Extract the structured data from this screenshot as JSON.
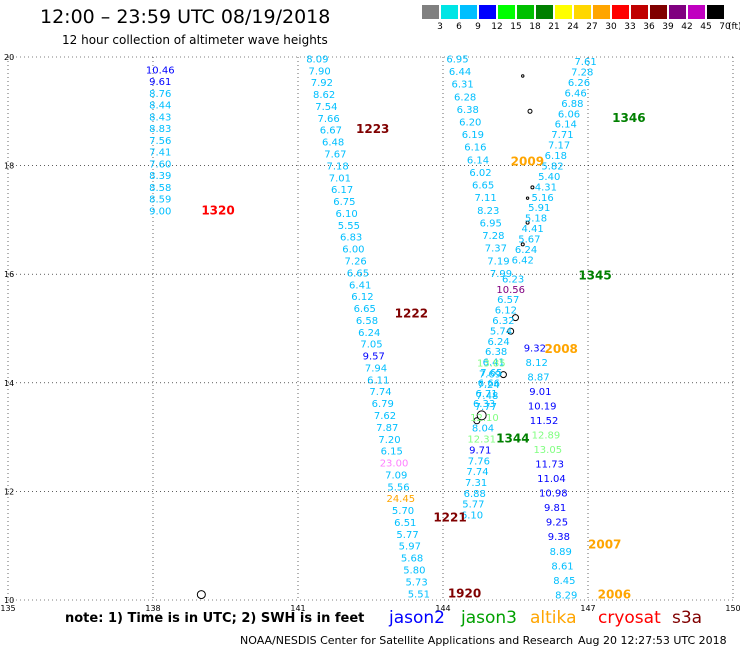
{
  "header": {
    "title": "12:00 – 23:59 UTC 08/19/2018",
    "subtitle": "12 hour collection of altimeter wave heights"
  },
  "color_scale": {
    "unit": "(ft)",
    "bins": [
      {
        "label": "3",
        "color": "#808080"
      },
      {
        "label": "6",
        "color": "#00e5e5"
      },
      {
        "label": "9",
        "color": "#00bfff"
      },
      {
        "label": "12",
        "color": "#0000ff"
      },
      {
        "label": "15",
        "color": "#00ff00"
      },
      {
        "label": "18",
        "color": "#00c000"
      },
      {
        "label": "21",
        "color": "#008000"
      },
      {
        "label": "24",
        "color": "#ffff00"
      },
      {
        "label": "27",
        "color": "#ffd700"
      },
      {
        "label": "30",
        "color": "#ffa500"
      },
      {
        "label": "33",
        "color": "#ff0000"
      },
      {
        "label": "36",
        "color": "#c00000"
      },
      {
        "label": "39",
        "color": "#800000"
      },
      {
        "label": "42",
        "color": "#800080"
      },
      {
        "label": "45",
        "color": "#c000c0"
      },
      {
        "label": "70",
        "color": "#000000"
      }
    ]
  },
  "map": {
    "lon_ticks": [
      "135",
      "138",
      "141",
      "144",
      "147",
      "150"
    ],
    "lat_ticks": [
      "10",
      "12",
      "14",
      "16",
      "18",
      "20"
    ],
    "lon_range": [
      135,
      150
    ],
    "lat_range": [
      10,
      20
    ],
    "pass_labels": [
      {
        "text": "1320",
        "lon": 139.0,
        "lat": 17.1,
        "color": "#ff0000"
      },
      {
        "text": "1223",
        "lon": 142.2,
        "lat": 18.6,
        "color": "#800000"
      },
      {
        "text": "1222",
        "lon": 143.0,
        "lat": 15.2,
        "color": "#800000"
      },
      {
        "text": "1346",
        "lon": 147.5,
        "lat": 18.8,
        "color": "#008000"
      },
      {
        "text": "2009",
        "lon": 145.4,
        "lat": 18.0,
        "color": "#ffa500"
      },
      {
        "text": "1345",
        "lon": 146.8,
        "lat": 15.9,
        "color": "#008000"
      },
      {
        "text": "2008",
        "lon": 146.1,
        "lat": 14.55,
        "color": "#ffa500"
      },
      {
        "text": "1344",
        "lon": 145.1,
        "lat": 12.9,
        "color": "#008000"
      },
      {
        "text": "1221",
        "lon": 143.8,
        "lat": 11.45,
        "color": "#800000"
      },
      {
        "text": "2007",
        "lon": 147.0,
        "lat": 10.95,
        "color": "#ffa500"
      },
      {
        "text": "1920",
        "lon": 144.1,
        "lat": 10.05,
        "color": "#800000"
      },
      {
        "text": "2006",
        "lon": 147.2,
        "lat": 10.03,
        "color": "#ffa500"
      }
    ],
    "tracks": [
      {
        "name": "t1320",
        "start_lon": 138.15,
        "start_lat": 19.7,
        "end_lon": 138.15,
        "end_lat": 17.1,
        "values": [
          "10.46",
          "9.61",
          "8.76",
          "8.44",
          "8.43",
          "8.83",
          "7.56",
          "7.41",
          "7.60",
          "8.39",
          "8.58",
          "8.59",
          "9.00"
        ],
        "colors": [
          "#0000ff",
          "#0000ff",
          "#00bfff",
          "#00bfff",
          "#00bfff",
          "#00bfff",
          "#00bfff",
          "#00bfff",
          "#00bfff",
          "#00bfff",
          "#00bfff",
          "#00bfff",
          "#00bfff"
        ]
      },
      {
        "name": "t1223",
        "start_lon": 141.4,
        "start_lat": 19.9,
        "end_lon": 143.5,
        "end_lat": 10.05,
        "values": [
          "8.09",
          "7.90",
          "7.92",
          "8.62",
          "7.54",
          "7.66",
          "6.67",
          "6.48",
          "7.67",
          "7.18",
          "7.01",
          "6.17",
          "6.75",
          "6.10",
          "5.55",
          "6.83",
          "6.00",
          "7.26",
          "6.65",
          "6.41",
          "6.12",
          "6.65",
          "6.58",
          "6.24",
          "7.05",
          "9.57",
          "7.94",
          "6.11",
          "7.74",
          "6.79",
          "7.62",
          "7.87",
          "7.20",
          "6.15",
          "23.00",
          "7.09",
          "5.56",
          "24.45",
          "5.70",
          "6.51",
          "5.77",
          "5.97",
          "5.68",
          "5.80",
          "5.73",
          "5.51"
        ],
        "colors": [
          "#00bfff",
          "#00bfff",
          "#00bfff",
          "#00bfff",
          "#00bfff",
          "#00bfff",
          "#00bfff",
          "#00bfff",
          "#00bfff",
          "#00bfff",
          "#00bfff",
          "#00bfff",
          "#00bfff",
          "#00bfff",
          "#00bfff",
          "#00bfff",
          "#00bfff",
          "#00bfff",
          "#00bfff",
          "#00bfff",
          "#00bfff",
          "#00bfff",
          "#00bfff",
          "#00bfff",
          "#00bfff",
          "#0000ff",
          "#00bfff",
          "#00bfff",
          "#00bfff",
          "#00bfff",
          "#00bfff",
          "#00bfff",
          "#00bfff",
          "#00bfff",
          "#ff80ff",
          "#00bfff",
          "#00bfff",
          "#ffa500",
          "#00bfff",
          "#00bfff",
          "#00bfff",
          "#00bfff",
          "#00bfff",
          "#00bfff",
          "#00bfff",
          "#00bfff"
        ]
      },
      {
        "name": "t2009",
        "start_lon": 144.3,
        "start_lat": 19.9,
        "end_lon": 145.2,
        "end_lat": 15.95,
        "values": [
          "6.95",
          "6.44",
          "6.31",
          "6.28",
          "6.38",
          "6.20",
          "6.19",
          "6.16",
          "6.14",
          "6.02",
          "6.65",
          "7.11",
          "8.23",
          "6.95",
          "7.28",
          "7.37",
          "7.19",
          "7.99"
        ],
        "colors": [
          "#00bfff",
          "#00bfff",
          "#00bfff",
          "#00bfff",
          "#00bfff",
          "#00bfff",
          "#00bfff",
          "#00bfff",
          "#00bfff",
          "#00bfff",
          "#00bfff",
          "#00bfff",
          "#00bfff",
          "#00bfff",
          "#00bfff",
          "#00bfff",
          "#00bfff",
          "#00bfff"
        ]
      },
      {
        "name": "t1346",
        "start_lon": 146.95,
        "start_lat": 19.85,
        "end_lon": 145.65,
        "end_lat": 16.2,
        "values": [
          "7.61",
          "7.28",
          "6.26",
          "6.46",
          "6.88",
          "6.06",
          "6.14",
          "7.71",
          "7.17",
          "6.18",
          "5.82",
          "5.40",
          "4.31",
          "5.16",
          "5.91",
          "5.18",
          "4.41",
          "5.67",
          "6.24",
          "6.42"
        ],
        "colors": [
          "#00bfff",
          "#00bfff",
          "#00bfff",
          "#00bfff",
          "#00bfff",
          "#00bfff",
          "#00bfff",
          "#00bfff",
          "#00bfff",
          "#00bfff",
          "#00bfff",
          "#00bfff",
          "#00bfff",
          "#00bfff",
          "#00bfff",
          "#00bfff",
          "#00bfff",
          "#00bfff",
          "#00bfff",
          "#00bfff"
        ]
      },
      {
        "name": "t1345",
        "start_lon": 145.45,
        "start_lat": 15.85,
        "end_lon": 144.85,
        "end_lat": 13.55,
        "values": [
          "6.23",
          "10.56",
          "6.57",
          "6.12",
          "6.32",
          "5.74",
          "6.24",
          "6.38",
          "6.41",
          "7.65",
          "6.66",
          "6.71",
          "6.33"
        ],
        "colors": [
          "#00bfff",
          "#800080",
          "#00bfff",
          "#00bfff",
          "#00bfff",
          "#00bfff",
          "#00bfff",
          "#00bfff",
          "#00bfff",
          "#00bfff",
          "#00bfff",
          "#00bfff",
          "#00bfff"
        ]
      },
      {
        "name": "t2008",
        "start_lon": 145.0,
        "start_lat": 14.3,
        "end_lon": 144.6,
        "end_lat": 11.5,
        "values": [
          "13.85",
          "7.69",
          "7.24",
          "7.48",
          "7.77",
          "12.10",
          "8.04",
          "12.31",
          "9.71",
          "7.76",
          "7.74",
          "7.31",
          "6.88",
          "5.77",
          "6.10"
        ],
        "colors": [
          "#80ff80",
          "#00bfff",
          "#00bfff",
          "#00bfff",
          "#00bfff",
          "#80ff80",
          "#00bfff",
          "#80ff80",
          "#0000ff",
          "#00bfff",
          "#00bfff",
          "#00bfff",
          "#00bfff",
          "#00bfff",
          "#00bfff"
        ]
      },
      {
        "name": "t1344",
        "start_lon": 145.9,
        "start_lat": 14.58,
        "end_lon": 146.55,
        "end_lat": 10.03,
        "values": [
          "9.32",
          "8.12",
          "8.87",
          "9.01",
          "10.19",
          "11.52",
          "12.89",
          "13.05",
          "11.73",
          "11.04",
          "10.98",
          "9.81",
          "9.25",
          "9.38",
          "8.89",
          "8.61",
          "8.45",
          "8.29"
        ],
        "colors": [
          "#0000ff",
          "#00bfff",
          "#00bfff",
          "#0000ff",
          "#0000ff",
          "#0000ff",
          "#80ff80",
          "#80ff80",
          "#0000ff",
          "#0000ff",
          "#0000ff",
          "#0000ff",
          "#0000ff",
          "#0000ff",
          "#00bfff",
          "#00bfff",
          "#00bfff",
          "#00bfff"
        ]
      }
    ]
  },
  "footer": {
    "note": "note: 1) Time is in UTC; 2) SWH is in feet",
    "satellites": [
      {
        "name": "jason2",
        "color": "#0000ff"
      },
      {
        "name": "jason3",
        "color": "#00a000"
      },
      {
        "name": "altika",
        "color": "#ffa500"
      },
      {
        "name": "cryosat",
        "color": "#ff0000"
      },
      {
        "name": "s3a",
        "color": "#800000"
      }
    ],
    "credit": "NOAA/NESDIS Center for Satellite Applications and Research",
    "timestamp": "Aug 20 12:27:53 UTC 2018"
  }
}
